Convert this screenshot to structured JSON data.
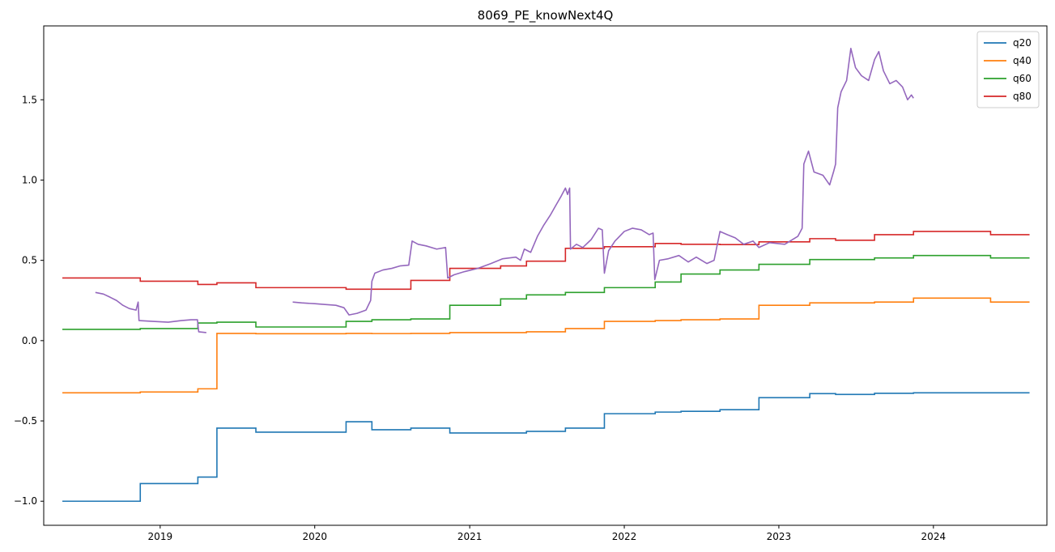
{
  "chart_data": {
    "type": "line",
    "title": "8069_PE_knowNext4Q",
    "xlabel": "",
    "ylabel": "",
    "x_type": "date",
    "xlim": [
      "2018-04-01",
      "2024-09-25"
    ],
    "ylim": [
      -1.15,
      1.96
    ],
    "x_ticks": [
      {
        "date": "2019-01-01",
        "label": "2019"
      },
      {
        "date": "2020-01-01",
        "label": "2020"
      },
      {
        "date": "2021-01-01",
        "label": "2021"
      },
      {
        "date": "2022-01-01",
        "label": "2022"
      },
      {
        "date": "2023-01-01",
        "label": "2023"
      },
      {
        "date": "2024-01-01",
        "label": "2024"
      }
    ],
    "y_ticks": [
      {
        "value": -1.0,
        "label": "−1.0"
      },
      {
        "value": -0.5,
        "label": "−0.5"
      },
      {
        "value": 0.0,
        "label": "0.0"
      },
      {
        "value": 0.5,
        "label": "0.5"
      },
      {
        "value": 1.0,
        "label": "1.0"
      },
      {
        "value": 1.5,
        "label": "1.5"
      }
    ],
    "grid": false,
    "legend_position": "top-right",
    "series": [
      {
        "name": "q20",
        "color": "#1f77b4",
        "step": true,
        "points": [
          [
            "2018-05-15",
            -1.0
          ],
          [
            "2018-11-15",
            -0.89
          ],
          [
            "2019-03-31",
            -0.85
          ],
          [
            "2019-05-15",
            -0.545
          ],
          [
            "2019-08-15",
            -0.57
          ],
          [
            "2020-03-15",
            -0.505
          ],
          [
            "2020-05-15",
            -0.555
          ],
          [
            "2020-08-15",
            -0.545
          ],
          [
            "2020-11-15",
            -0.575
          ],
          [
            "2021-05-15",
            -0.565
          ],
          [
            "2021-08-15",
            -0.545
          ],
          [
            "2021-11-15",
            -0.455
          ],
          [
            "2022-03-15",
            -0.445
          ],
          [
            "2022-05-15",
            -0.44
          ],
          [
            "2022-08-15",
            -0.43
          ],
          [
            "2022-11-15",
            -0.355
          ],
          [
            "2023-03-15",
            -0.33
          ],
          [
            "2023-05-15",
            -0.335
          ],
          [
            "2023-08-15",
            -0.328
          ],
          [
            "2023-11-15",
            -0.325
          ],
          [
            "2024-05-15",
            -0.325
          ],
          [
            "2024-08-15",
            -0.325
          ]
        ]
      },
      {
        "name": "q40",
        "color": "#ff7f0e",
        "step": true,
        "points": [
          [
            "2018-05-15",
            -0.325
          ],
          [
            "2018-11-15",
            -0.32
          ],
          [
            "2019-03-31",
            -0.3
          ],
          [
            "2019-05-15",
            0.045
          ],
          [
            "2019-08-15",
            0.043
          ],
          [
            "2020-03-15",
            0.045
          ],
          [
            "2020-05-15",
            0.044
          ],
          [
            "2020-08-15",
            0.045
          ],
          [
            "2020-11-15",
            0.05
          ],
          [
            "2021-05-15",
            0.055
          ],
          [
            "2021-08-15",
            0.075
          ],
          [
            "2021-11-15",
            0.12
          ],
          [
            "2022-03-15",
            0.125
          ],
          [
            "2022-05-15",
            0.13
          ],
          [
            "2022-08-15",
            0.135
          ],
          [
            "2022-11-15",
            0.22
          ],
          [
            "2023-03-15",
            0.235
          ],
          [
            "2023-05-15",
            0.235
          ],
          [
            "2023-08-15",
            0.24
          ],
          [
            "2023-11-15",
            0.265
          ],
          [
            "2024-05-15",
            0.24
          ],
          [
            "2024-08-15",
            0.24
          ]
        ]
      },
      {
        "name": "q60",
        "color": "#2ca02c",
        "step": true,
        "points": [
          [
            "2018-05-15",
            0.07
          ],
          [
            "2018-11-15",
            0.075
          ],
          [
            "2019-03-31",
            0.11
          ],
          [
            "2019-05-15",
            0.115
          ],
          [
            "2019-08-15",
            0.085
          ],
          [
            "2020-03-15",
            0.12
          ],
          [
            "2020-05-15",
            0.13
          ],
          [
            "2020-08-15",
            0.135
          ],
          [
            "2020-11-15",
            0.22
          ],
          [
            "2021-03-15",
            0.26
          ],
          [
            "2021-05-15",
            0.285
          ],
          [
            "2021-08-15",
            0.3
          ],
          [
            "2021-11-15",
            0.33
          ],
          [
            "2022-03-15",
            0.365
          ],
          [
            "2022-05-15",
            0.415
          ],
          [
            "2022-08-15",
            0.44
          ],
          [
            "2022-11-15",
            0.475
          ],
          [
            "2023-03-15",
            0.505
          ],
          [
            "2023-05-15",
            0.505
          ],
          [
            "2023-08-15",
            0.515
          ],
          [
            "2023-11-15",
            0.53
          ],
          [
            "2024-05-15",
            0.515
          ],
          [
            "2024-08-15",
            0.515
          ]
        ]
      },
      {
        "name": "q80",
        "color": "#d62728",
        "step": true,
        "points": [
          [
            "2018-05-15",
            0.39
          ],
          [
            "2018-11-15",
            0.37
          ],
          [
            "2019-03-31",
            0.35
          ],
          [
            "2019-05-15",
            0.36
          ],
          [
            "2019-08-15",
            0.33
          ],
          [
            "2020-03-15",
            0.32
          ],
          [
            "2020-08-15",
            0.375
          ],
          [
            "2020-11-15",
            0.45
          ],
          [
            "2021-03-15",
            0.465
          ],
          [
            "2021-05-15",
            0.495
          ],
          [
            "2021-08-15",
            0.575
          ],
          [
            "2021-11-15",
            0.585
          ],
          [
            "2022-03-15",
            0.605
          ],
          [
            "2022-05-15",
            0.6
          ],
          [
            "2022-08-15",
            0.598
          ],
          [
            "2022-11-15",
            0.615
          ],
          [
            "2023-03-15",
            0.635
          ],
          [
            "2023-05-15",
            0.625
          ],
          [
            "2023-08-15",
            0.66
          ],
          [
            "2023-11-15",
            0.68
          ],
          [
            "2024-05-15",
            0.66
          ],
          [
            "2024-08-15",
            0.66
          ]
        ]
      },
      {
        "name": "",
        "color": "#9467bd",
        "step": false,
        "legend": false,
        "segments": [
          [
            [
              "2018-08-01",
              0.3
            ],
            [
              "2018-08-20",
              0.29
            ],
            [
              "2018-09-05",
              0.27
            ],
            [
              "2018-09-20",
              0.25
            ],
            [
              "2018-10-05",
              0.22
            ],
            [
              "2018-10-20",
              0.2
            ],
            [
              "2018-11-05",
              0.19
            ],
            [
              "2018-11-10",
              0.24
            ],
            [
              "2018-11-12",
              0.125
            ],
            [
              "2018-12-15",
              0.12
            ],
            [
              "2019-01-20",
              0.115
            ],
            [
              "2019-02-20",
              0.125
            ],
            [
              "2019-03-15",
              0.13
            ],
            [
              "2019-03-30",
              0.13
            ],
            [
              "2019-04-02",
              0.055
            ],
            [
              "2019-04-20",
              0.05
            ]
          ],
          [
            [
              "2019-11-10",
              0.24
            ],
            [
              "2019-12-01",
              0.235
            ],
            [
              "2020-01-01",
              0.23
            ],
            [
              "2020-01-25",
              0.225
            ],
            [
              "2020-02-20",
              0.22
            ],
            [
              "2020-03-10",
              0.205
            ],
            [
              "2020-03-22",
              0.16
            ],
            [
              "2020-04-10",
              0.17
            ],
            [
              "2020-05-01",
              0.19
            ],
            [
              "2020-05-12",
              0.25
            ],
            [
              "2020-05-15",
              0.37
            ],
            [
              "2020-05-22",
              0.42
            ],
            [
              "2020-06-10",
              0.44
            ],
            [
              "2020-07-01",
              0.45
            ],
            [
              "2020-07-20",
              0.465
            ],
            [
              "2020-08-10",
              0.47
            ],
            [
              "2020-08-18",
              0.62
            ],
            [
              "2020-09-01",
              0.6
            ],
            [
              "2020-09-20",
              0.59
            ],
            [
              "2020-10-15",
              0.57
            ],
            [
              "2020-11-05",
              0.58
            ],
            [
              "2020-11-10",
              0.39
            ],
            [
              "2020-11-25",
              0.41
            ],
            [
              "2020-12-20",
              0.43
            ],
            [
              "2021-01-20",
              0.45
            ],
            [
              "2021-02-20",
              0.48
            ],
            [
              "2021-03-20",
              0.51
            ],
            [
              "2021-04-20",
              0.52
            ],
            [
              "2021-05-01",
              0.5
            ],
            [
              "2021-05-10",
              0.57
            ],
            [
              "2021-05-25",
              0.55
            ],
            [
              "2021-06-10",
              0.65
            ],
            [
              "2021-06-25",
              0.72
            ],
            [
              "2021-07-10",
              0.78
            ],
            [
              "2021-07-25",
              0.85
            ],
            [
              "2021-08-05",
              0.9
            ],
            [
              "2021-08-15",
              0.95
            ],
            [
              "2021-08-20",
              0.91
            ],
            [
              "2021-08-25",
              0.95
            ],
            [
              "2021-08-27",
              0.57
            ],
            [
              "2021-09-10",
              0.6
            ],
            [
              "2021-09-25",
              0.58
            ],
            [
              "2021-10-15",
              0.63
            ],
            [
              "2021-11-01",
              0.7
            ],
            [
              "2021-11-10",
              0.69
            ],
            [
              "2021-11-15",
              0.42
            ],
            [
              "2021-11-25",
              0.56
            ],
            [
              "2021-12-10",
              0.62
            ],
            [
              "2022-01-01",
              0.68
            ],
            [
              "2022-01-20",
              0.7
            ],
            [
              "2022-02-10",
              0.69
            ],
            [
              "2022-03-01",
              0.66
            ],
            [
              "2022-03-10",
              0.67
            ],
            [
              "2022-03-14",
              0.38
            ],
            [
              "2022-03-25",
              0.5
            ],
            [
              "2022-04-15",
              0.51
            ],
            [
              "2022-05-10",
              0.53
            ],
            [
              "2022-06-01",
              0.49
            ],
            [
              "2022-06-20",
              0.52
            ],
            [
              "2022-07-15",
              0.48
            ],
            [
              "2022-08-01",
              0.5
            ],
            [
              "2022-08-15",
              0.68
            ],
            [
              "2022-09-01",
              0.66
            ],
            [
              "2022-09-20",
              0.64
            ],
            [
              "2022-10-10",
              0.6
            ],
            [
              "2022-11-01",
              0.62
            ],
            [
              "2022-11-15",
              0.58
            ],
            [
              "2022-12-10",
              0.61
            ],
            [
              "2023-01-15",
              0.6
            ],
            [
              "2023-02-15",
              0.65
            ],
            [
              "2023-02-25",
              0.7
            ],
            [
              "2023-03-01",
              1.1
            ],
            [
              "2023-03-12",
              1.18
            ],
            [
              "2023-03-25",
              1.05
            ],
            [
              "2023-04-15",
              1.03
            ],
            [
              "2023-05-01",
              0.97
            ],
            [
              "2023-05-10",
              1.05
            ],
            [
              "2023-05-15",
              1.1
            ],
            [
              "2023-05-20",
              1.45
            ],
            [
              "2023-05-28",
              1.55
            ],
            [
              "2023-06-10",
              1.62
            ],
            [
              "2023-06-20",
              1.82
            ],
            [
              "2023-07-01",
              1.7
            ],
            [
              "2023-07-15",
              1.65
            ],
            [
              "2023-08-01",
              1.62
            ],
            [
              "2023-08-15",
              1.75
            ],
            [
              "2023-08-25",
              1.8
            ],
            [
              "2023-09-05",
              1.68
            ],
            [
              "2023-09-20",
              1.6
            ],
            [
              "2023-10-05",
              1.62
            ],
            [
              "2023-10-20",
              1.58
            ],
            [
              "2023-11-01",
              1.5
            ],
            [
              "2023-11-10",
              1.53
            ],
            [
              "2023-11-15",
              1.51
            ]
          ]
        ]
      }
    ]
  }
}
